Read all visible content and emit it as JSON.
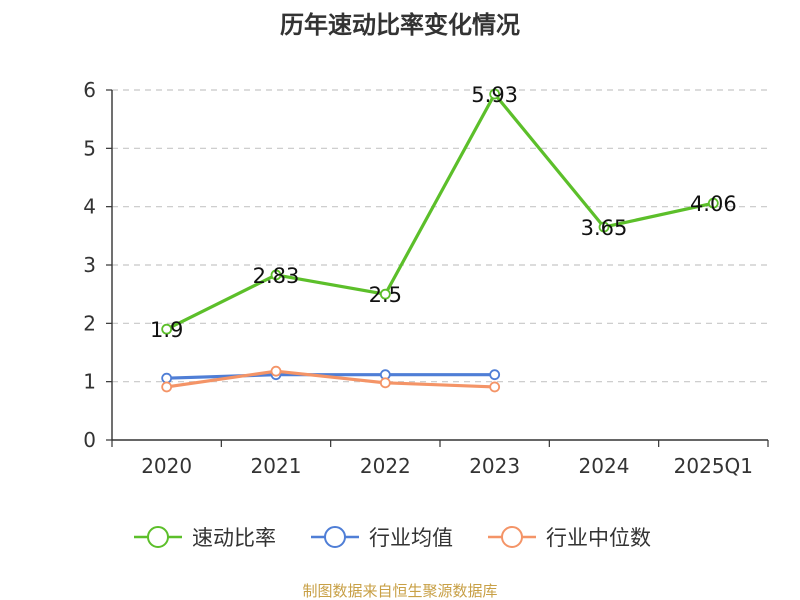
{
  "chart_data": {
    "type": "line",
    "title": "历年速动比率变化情况",
    "categories": [
      "2020",
      "2021",
      "2022",
      "2023",
      "2024",
      "2025Q1"
    ],
    "ylim": [
      0,
      6
    ],
    "yticks": [
      "0",
      "1",
      "2",
      "3",
      "4",
      "5",
      "6"
    ],
    "grid": true,
    "legend_position": "bottom",
    "series": [
      {
        "name": "速动比率",
        "color": "#5cbf2a",
        "values": [
          1.9,
          2.83,
          2.5,
          5.93,
          3.65,
          4.06
        ],
        "labels": [
          "1.9",
          "2.83",
          "2.5",
          "5.93",
          "3.65",
          "4.06"
        ]
      },
      {
        "name": "行业均值",
        "color": "#4f7ed6",
        "values": [
          1.06,
          1.12,
          1.12,
          1.12,
          null,
          null
        ]
      },
      {
        "name": "行业中位数",
        "color": "#f49467",
        "values": [
          0.91,
          1.18,
          0.98,
          0.91,
          null,
          null
        ]
      }
    ]
  },
  "source": "制图数据来自恒生聚源数据库"
}
